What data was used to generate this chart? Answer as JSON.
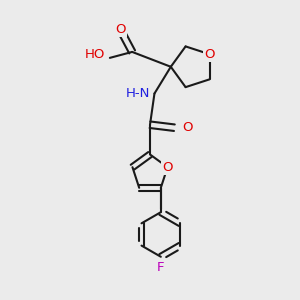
{
  "background_color": "#ebebeb",
  "bond_color": "#1a1a1a",
  "bond_width": 1.5,
  "atom_colors": {
    "O": "#e00000",
    "N": "#2020e0",
    "F": "#bb00bb",
    "C": "#1a1a1a"
  },
  "font_size": 9.5,
  "figsize": [
    3.0,
    3.0
  ],
  "dpi": 100
}
